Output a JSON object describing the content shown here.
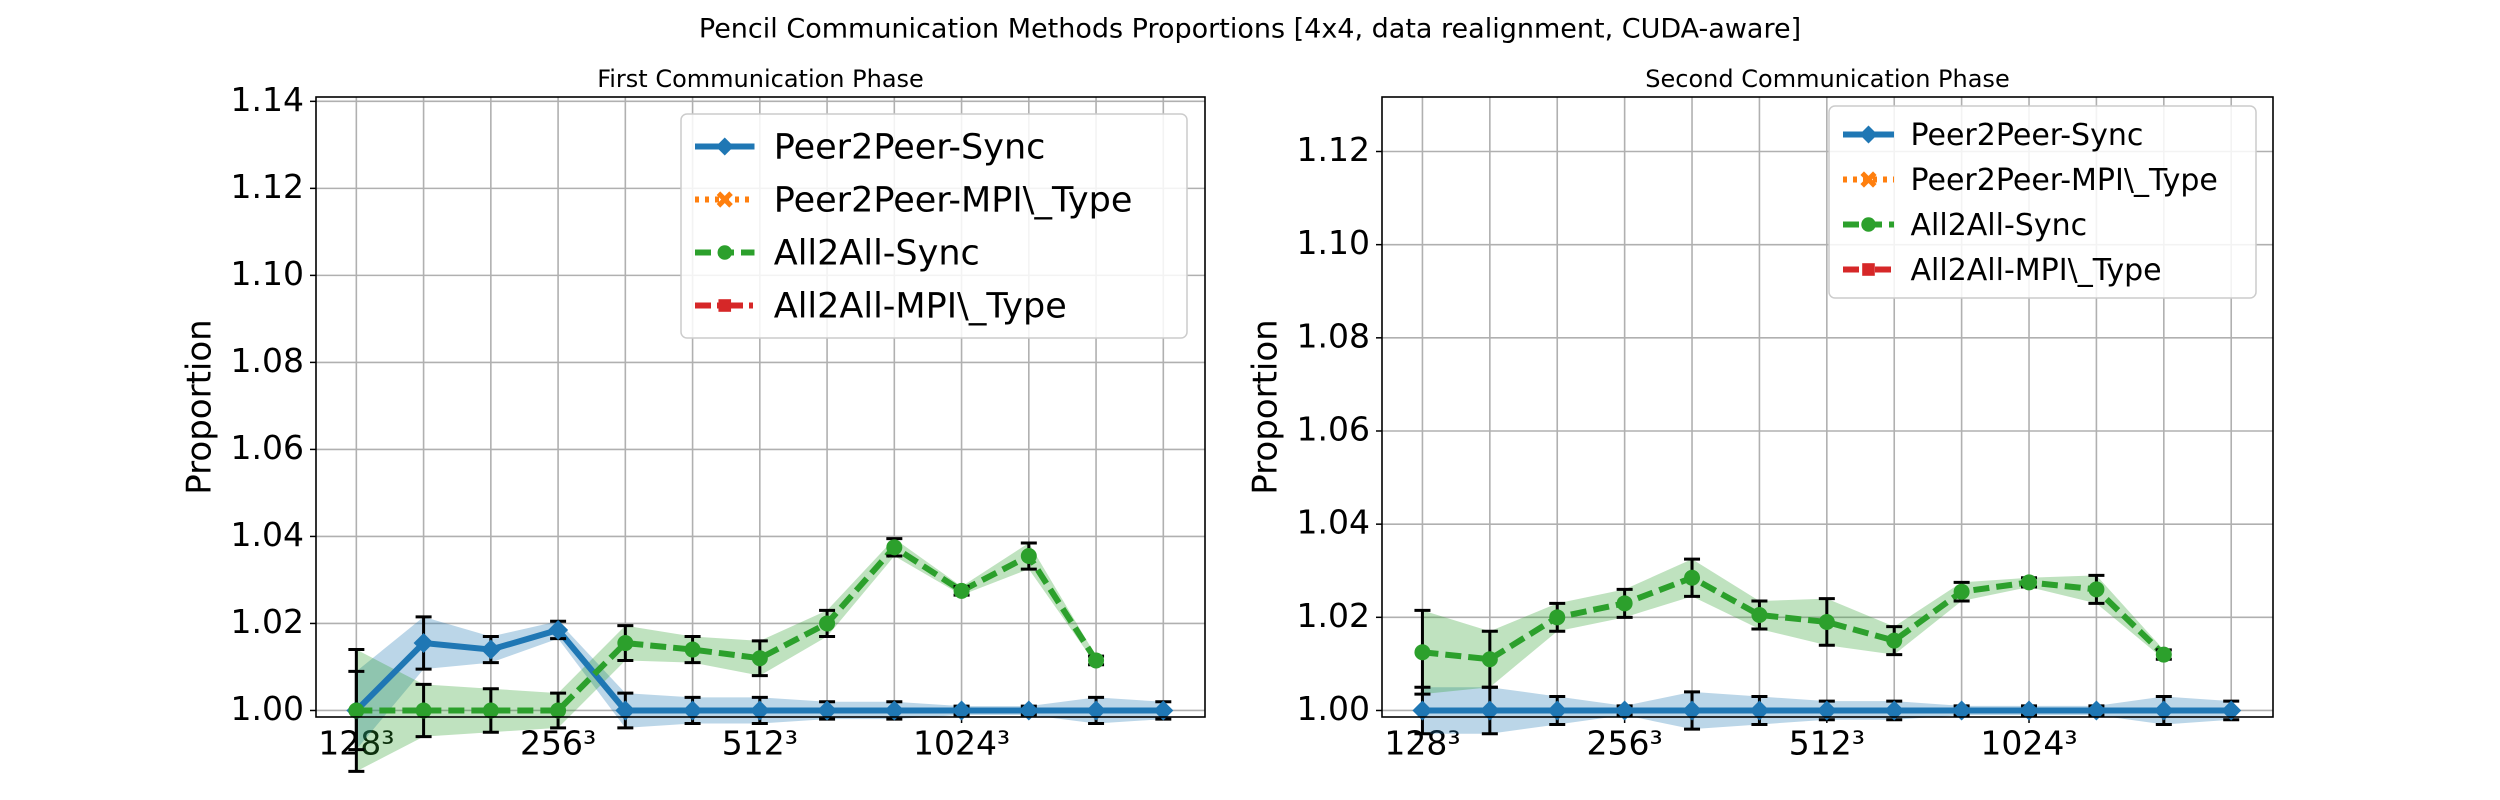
{
  "title": "Pencil Communication Methods Proportions [4x4, data realignment, CUDA-aware]",
  "chart_data": [
    {
      "type": "line",
      "title": "First Communication Phase",
      "y_label": "Proportion",
      "categories": [
        "128³",
        null,
        null,
        "256³",
        null,
        null,
        "512³",
        null,
        null,
        "1024³",
        null,
        null,
        null
      ],
      "xlim": [
        -0.6,
        12.62
      ],
      "ylim": [
        0.9985,
        1.141
      ],
      "yticks": [
        {
          "value": 1.0,
          "label": "1.00"
        },
        {
          "value": 1.02,
          "label": "1.02"
        },
        {
          "value": 1.04,
          "label": "1.04"
        },
        {
          "value": 1.06,
          "label": "1.06"
        },
        {
          "value": 1.08,
          "label": "1.08"
        },
        {
          "value": 1.1,
          "label": "1.10"
        },
        {
          "value": 1.12,
          "label": "1.12"
        },
        {
          "value": 1.14,
          "label": "1.14"
        }
      ],
      "grid": true,
      "legend": "upper right",
      "series": [
        {
          "name": "Peer2Peer-Sync",
          "color": "#1f77b4",
          "marker": "diamond",
          "linestyle": "solid",
          "values": [
            1.0,
            1.0155,
            1.014,
            1.0185,
            1.0,
            1.0,
            1.0,
            1.0,
            1.0,
            1.0,
            1.0,
            1.0,
            1.0
          ],
          "errors": [
            0.009,
            0.006,
            0.003,
            0.002,
            0.004,
            0.003,
            0.003,
            0.002,
            0.002,
            0.001,
            0.001,
            0.003,
            0.002
          ]
        },
        {
          "name": "Peer2Peer-MPI\\_Type",
          "color": "#ff7f0e",
          "marker": "x",
          "linestyle": "dotted",
          "values": [
            null,
            null,
            null,
            null,
            null,
            null,
            null,
            null,
            null,
            null,
            null,
            null,
            null
          ]
        },
        {
          "name": "All2All-Sync",
          "color": "#2ca02c",
          "marker": "circle",
          "linestyle": "dashed",
          "values": [
            1.0,
            1.0,
            1.0,
            1.0,
            1.0155,
            1.014,
            1.012,
            1.02,
            1.0375,
            1.0275,
            1.0355,
            1.0115,
            null
          ],
          "errors": [
            0.014,
            0.006,
            0.005,
            0.004,
            0.004,
            0.003,
            0.004,
            0.003,
            0.002,
            0.001,
            0.003,
            0.001,
            null
          ]
        },
        {
          "name": "All2All-MPI\\_Type",
          "color": "#d62728",
          "marker": "square",
          "linestyle": "dashdot",
          "values": [
            null,
            null,
            null,
            null,
            null,
            null,
            null,
            null,
            null,
            null,
            null,
            null,
            null
          ]
        }
      ]
    },
    {
      "type": "line",
      "title": "Second Communication Phase",
      "y_label": "Proportion",
      "categories": [
        "128³",
        null,
        null,
        "256³",
        null,
        null,
        "512³",
        null,
        null,
        "1024³",
        null,
        null,
        null
      ],
      "xlim": [
        -0.6,
        12.62
      ],
      "ylim": [
        0.9986,
        1.1317
      ],
      "yticks": [
        {
          "value": 1.0,
          "label": "1.00"
        },
        {
          "value": 1.02,
          "label": "1.02"
        },
        {
          "value": 1.04,
          "label": "1.04"
        },
        {
          "value": 1.06,
          "label": "1.06"
        },
        {
          "value": 1.08,
          "label": "1.08"
        },
        {
          "value": 1.1,
          "label": "1.10"
        },
        {
          "value": 1.12,
          "label": "1.12"
        }
      ],
      "grid": true,
      "legend": "upper right",
      "series": [
        {
          "name": "Peer2Peer-Sync",
          "color": "#1f77b4",
          "marker": "diamond",
          "linestyle": "solid",
          "values": [
            1.0,
            1.0,
            1.0,
            1.0,
            1.0,
            1.0,
            1.0,
            1.0,
            1.0,
            1.0,
            1.0,
            1.0,
            1.0
          ],
          "errors": [
            0.005,
            0.005,
            0.003,
            0.001,
            0.004,
            0.003,
            0.002,
            0.002,
            0.001,
            0.001,
            0.001,
            0.003,
            0.002
          ]
        },
        {
          "name": "Peer2Peer-MPI\\_Type",
          "color": "#ff7f0e",
          "marker": "x",
          "linestyle": "dotted",
          "values": [
            null,
            null,
            null,
            null,
            null,
            null,
            null,
            null,
            null,
            null,
            null,
            null,
            null
          ]
        },
        {
          "name": "All2All-Sync",
          "color": "#2ca02c",
          "marker": "circle",
          "linestyle": "dashed",
          "values": [
            1.0125,
            1.011,
            1.02,
            1.023,
            1.0285,
            1.0205,
            1.019,
            1.015,
            1.0255,
            1.0275,
            1.026,
            1.012,
            null
          ],
          "errors": [
            0.009,
            0.006,
            0.003,
            0.003,
            0.004,
            0.003,
            0.005,
            0.003,
            0.002,
            0.001,
            0.003,
            0.001,
            null
          ]
        },
        {
          "name": "All2All-MPI\\_Type",
          "color": "#d62728",
          "marker": "square",
          "linestyle": "dashdot",
          "values": [
            null,
            null,
            null,
            null,
            null,
            null,
            null,
            null,
            null,
            null,
            null,
            null,
            null
          ]
        }
      ]
    }
  ]
}
